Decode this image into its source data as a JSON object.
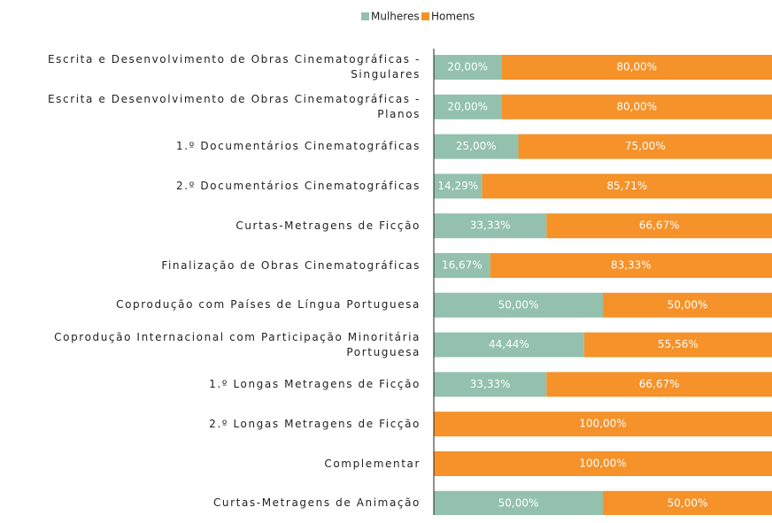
{
  "chart_data": {
    "type": "stacked-bar-horizontal",
    "categories": [
      "Escrita e Desenvolvimento de Obras Cinematográficas - Singulares",
      "Escrita e Desenvolvimento de Obras Cinematográficas - Planos",
      "1.º Documentários Cinematográficas",
      "2.º Documentários Cinematográficas",
      "Curtas-Metragens de Ficção",
      "Finalização de Obras Cinematográficas",
      "Coprodução com Países de Língua Portuguesa",
      "Coprodução Internacional com Participação Minoritária Portuguesa",
      "1.º Longas Metragens de Ficção",
      "2.º Longas Metragens de Ficção",
      "Complementar",
      "Curtas-Metragens de Animação"
    ],
    "series": [
      {
        "name": "Mulheres",
        "color": "#93c1ad",
        "values": [
          20,
          20,
          25,
          14.29,
          33.33,
          16.67,
          50,
          44.44,
          33.33,
          0,
          0,
          50
        ],
        "value_labels": [
          "20,00%",
          "20,00%",
          "25,00%",
          "14,29%",
          "33,33%",
          "16,67%",
          "50,00%",
          "44,44%",
          "33,33%",
          null,
          null,
          "50,00%"
        ]
      },
      {
        "name": "Homens",
        "color": "#f5922a",
        "values": [
          80,
          80,
          75,
          85.71,
          66.67,
          83.33,
          50,
          55.56,
          66.67,
          100,
          100,
          50
        ],
        "value_labels": [
          "80,00%",
          "80,00%",
          "75,00%",
          "85,71%",
          "66,67%",
          "83,33%",
          "50,00%",
          "55,56%",
          "66,67%",
          "100,00%",
          "100,00%",
          "50,00%"
        ]
      }
    ],
    "xlim": [
      0,
      100
    ],
    "legend": "top"
  }
}
